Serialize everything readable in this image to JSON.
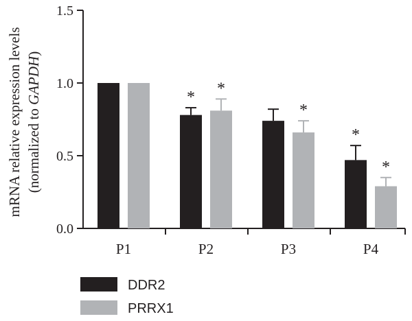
{
  "chart_data": {
    "type": "bar",
    "categories": [
      "P1",
      "P2",
      "P3",
      "P4"
    ],
    "ylabel_line1": "mRNA relative expression levels",
    "ylabel_line2_prefix": "(normalized to ",
    "ylabel_line2_italic": "GAPDH",
    "ylabel_line2_suffix": ")",
    "ylim": [
      0,
      1.5
    ],
    "yticks": [
      "0.0",
      "0.5",
      "1.0",
      "1.5"
    ],
    "ytick_values": [
      0,
      0.5,
      1.0,
      1.5
    ],
    "grid": false,
    "legend_position": "bottom-left",
    "significance_marker": "*",
    "series": [
      {
        "name": "DDR2",
        "color": "#231f20",
        "values": [
          1.0,
          0.78,
          0.74,
          0.47
        ],
        "errors": [
          0,
          0.05,
          0.08,
          0.1
        ],
        "significant": [
          false,
          true,
          false,
          true
        ]
      },
      {
        "name": "PRRX1",
        "color": "#b1b3b6",
        "values": [
          1.0,
          0.81,
          0.66,
          0.29
        ],
        "errors": [
          0,
          0.08,
          0.08,
          0.06
        ],
        "significant": [
          false,
          true,
          true,
          true
        ]
      }
    ]
  }
}
